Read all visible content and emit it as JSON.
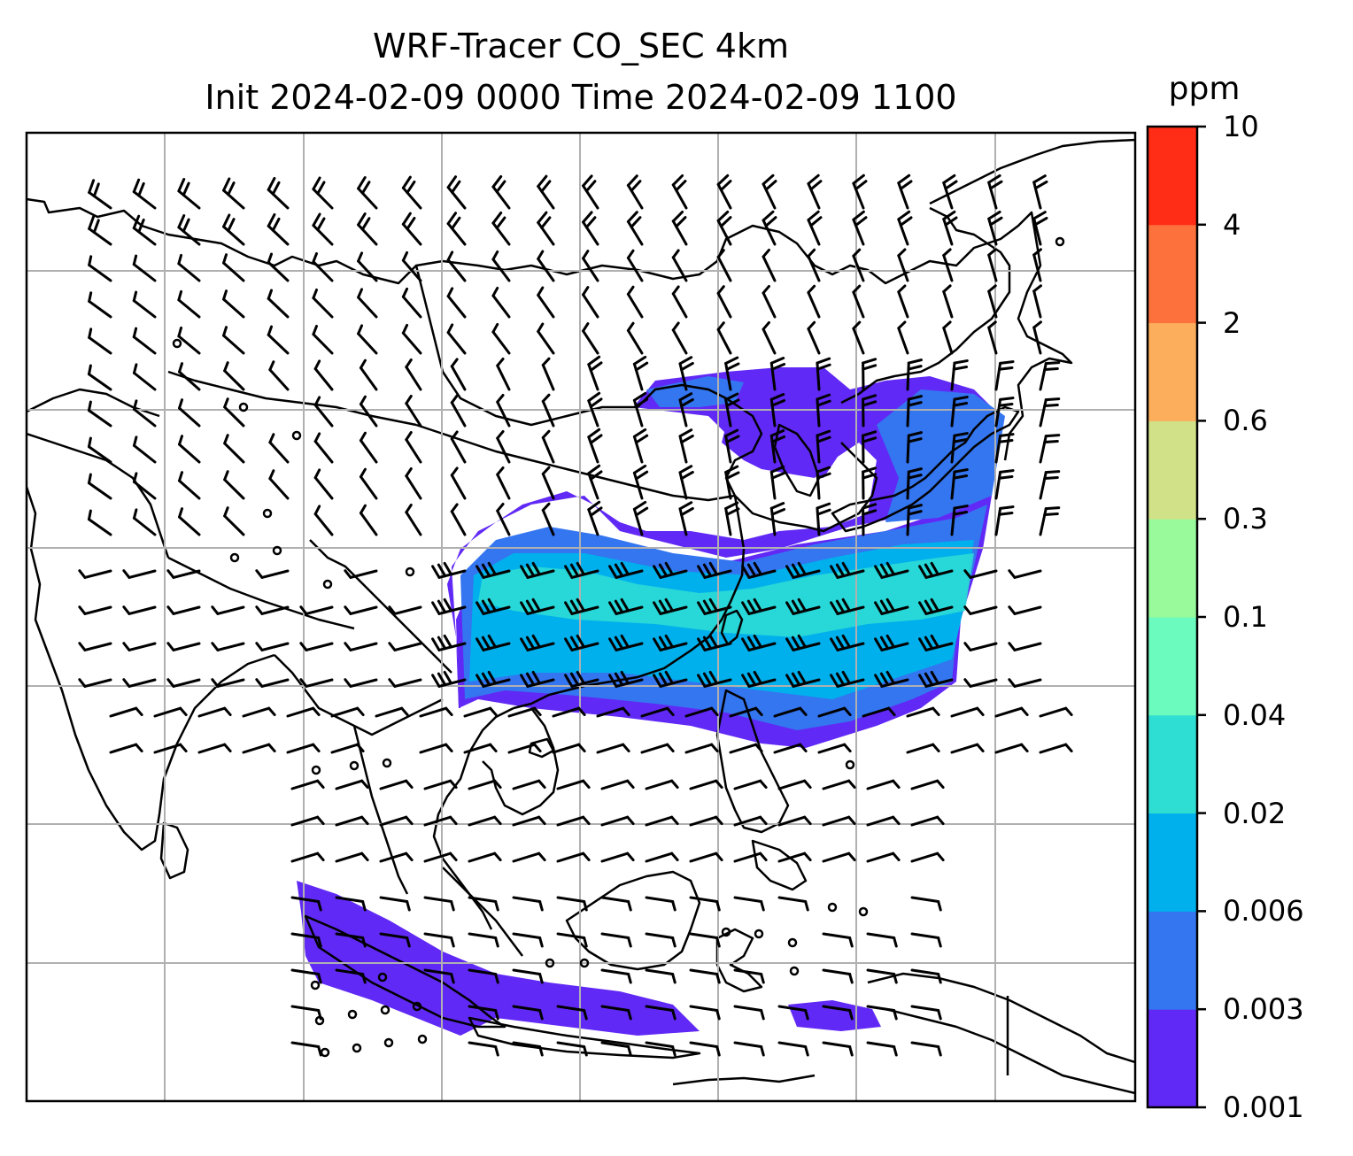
{
  "title": {
    "line1": "WRF-Tracer CO_SEC 4km",
    "line2": "Init 2024-02-09 0000 Time 2024-02-09 1100"
  },
  "colorbar": {
    "unit": "ppm",
    "levels": [
      "0.001",
      "0.003",
      "0.006",
      "0.02",
      "0.04",
      "0.1",
      "0.3",
      "0.6",
      "2",
      "4",
      "10"
    ],
    "colors": [
      "#6129f5",
      "#3475f0",
      "#00b0ec",
      "#2fded3",
      "#6cfbbe",
      "#99fa9c",
      "#d0e188",
      "#fcae5d",
      "#fd713d",
      "#ff2c16"
    ]
  },
  "map": {
    "gridlines": true,
    "wind_barbs": true,
    "coastlines": true
  }
}
